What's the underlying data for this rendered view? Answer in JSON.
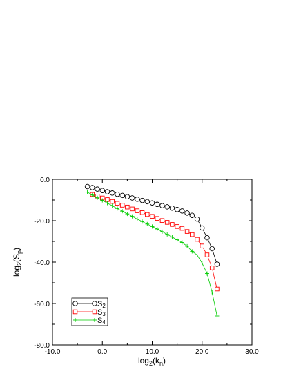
{
  "chart_data": {
    "type": "line",
    "xlabel": "log2(kn)",
    "ylabel": "log2(Sp)",
    "xlim": [
      -10,
      30
    ],
    "ylim": [
      -80,
      0
    ],
    "xticks": [
      "-10.0",
      "0.0",
      "10.0",
      "20.0",
      "30.0"
    ],
    "yticks": [
      "0.0",
      "-20.0",
      "-40.0",
      "-60.0",
      "-80.0"
    ],
    "grid": false,
    "legend_position": "bottom-left",
    "series": [
      {
        "name": "S2",
        "name_base": "S",
        "name_sub": "2",
        "marker": "circle",
        "color": "#000000",
        "x": [
          -3,
          -2,
          -1,
          0,
          1,
          2,
          3,
          4,
          5,
          6,
          7,
          8,
          9,
          10,
          11,
          12,
          13,
          14,
          15,
          16,
          17,
          18,
          19,
          20,
          21,
          22,
          23
        ],
        "y": [
          -3.5,
          -4.0,
          -4.7,
          -5.4,
          -6.0,
          -6.6,
          -7.2,
          -7.8,
          -8.4,
          -9.0,
          -9.6,
          -10.2,
          -10.8,
          -11.4,
          -12.1,
          -12.7,
          -13.3,
          -13.9,
          -14.6,
          -15.3,
          -16.3,
          -17.4,
          -19.2,
          -23.5,
          -28.2,
          -33.5,
          -41.0
        ]
      },
      {
        "name": "S3",
        "name_base": "S",
        "name_sub": "3",
        "marker": "square",
        "color": "#ff0000",
        "x": [
          -2,
          -1,
          0,
          1,
          2,
          3,
          4,
          5,
          6,
          7,
          8,
          9,
          10,
          11,
          12,
          13,
          14,
          15,
          16,
          17,
          18,
          19,
          20,
          21,
          22,
          23
        ],
        "y": [
          -7.3,
          -8.1,
          -9.0,
          -9.8,
          -10.7,
          -11.6,
          -12.5,
          -13.4,
          -14.3,
          -15.2,
          -16.1,
          -17.0,
          -17.9,
          -18.9,
          -19.9,
          -20.8,
          -21.8,
          -22.8,
          -23.7,
          -25.2,
          -26.7,
          -29.0,
          -32.2,
          -36.5,
          -42.8,
          -53.0
        ]
      },
      {
        "name": "S4",
        "name_base": "S",
        "name_sub": "4",
        "marker": "plus",
        "color": "#00cc00",
        "x": [
          -3,
          -2,
          -1,
          0,
          1,
          2,
          3,
          4,
          5,
          6,
          7,
          8,
          9,
          10,
          11,
          12,
          13,
          14,
          15,
          16,
          17,
          18,
          19,
          20,
          21,
          22,
          23
        ],
        "y": [
          -6.2,
          -7.6,
          -8.9,
          -10.2,
          -11.5,
          -12.8,
          -14.1,
          -15.4,
          -16.7,
          -17.9,
          -19.2,
          -20.4,
          -21.6,
          -22.8,
          -24.0,
          -25.3,
          -26.6,
          -27.9,
          -29.2,
          -30.5,
          -32.3,
          -34.8,
          -36.5,
          -40.5,
          -45.5,
          -54.5,
          -66.0
        ]
      }
    ]
  }
}
